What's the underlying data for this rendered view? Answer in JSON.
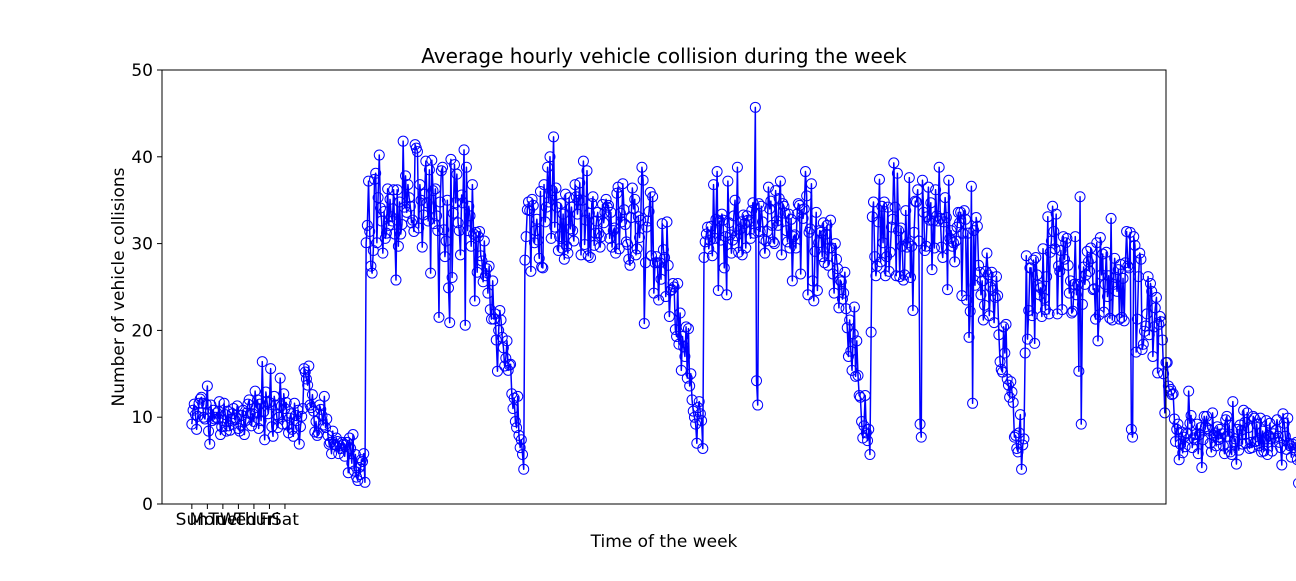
{
  "chart_data": {
    "type": "line",
    "title": "Average hourly vehicle collision during the week",
    "xlabel": "Time of the week",
    "ylabel": "Number of vehicle collisions",
    "ylim": [
      0,
      50
    ],
    "yticks": [
      0,
      10,
      20,
      30,
      40,
      50
    ],
    "xlim": [
      -25,
      816
    ],
    "x_ticks": [
      {
        "x": 0,
        "label": "Sun"
      },
      {
        "x": 13,
        "label": "Mon"
      },
      {
        "x": 26,
        "label": "Tue"
      },
      {
        "x": 39,
        "label": "Wed"
      },
      {
        "x": 52,
        "label": "Thur"
      },
      {
        "x": 65,
        "label": "Fri"
      },
      {
        "x": 78,
        "label": "Sat"
      }
    ],
    "grid": false,
    "legend": "none",
    "colors": {
      "series": "#0000ff",
      "axes": "#000000",
      "background": "#ffffff"
    },
    "marker": "open-circle",
    "x_start": 0,
    "x_step": 1,
    "series": [
      {
        "values": [
          9.2,
          10.8,
          11.5,
          10.3,
          8.6,
          10.1,
          11.6,
          12.1,
          12.3,
          11.6,
          10.0,
          9.8,
          11.5,
          13.6,
          8.4,
          6.9,
          11.4,
          9.6,
          10.8,
          9.8,
          10.0,
          10.5,
          9.8,
          11.8,
          8.0,
          8.9,
          9.6,
          11.6,
          10.3,
          8.4,
          10.7,
          9.0,
          8.5,
          9.8,
          10.4,
          11.0,
          9.7,
          9.9,
          11.3,
          8.7,
          8.4,
          9.1,
          10.2,
          10.8,
          8.0,
          9.6,
          10.5,
          11.5,
          12.0,
          10.4,
          9.0,
          10.4,
          9.5,
          13.0,
          11.1,
          12.0,
          8.7,
          11.5,
          9.6,
          16.4,
          10.6,
          7.4,
          12.9,
          11.8,
          10.4,
          11.7,
          15.6,
          8.9,
          7.8,
          12.4,
          11.4,
          10.3,
          8.8,
          10.0,
          14.5,
          11.3,
          9.2,
          12.7,
          11.0,
          11.7,
          9.1,
          8.2,
          9.9,
          10.4,
          8.6,
          7.8,
          11.6,
          10.2,
          9.6,
          10.8,
          6.9,
          8.9,
          10.1,
          11.0,
          15.6,
          15.2,
          14.4,
          13.7,
          15.9,
          11.4,
          11.1,
          12.6,
          10.7,
          8.3,
          9.5,
          7.9,
          8.2,
          11.4,
          10.9,
          10.2,
          9.1,
          12.4,
          8.8,
          9.8,
          7.9,
          6.9,
          7.1,
          5.8,
          8.4,
          6.9,
          6.8,
          7.6,
          7.2,
          5.8,
          6.7,
          6.4,
          7.1,
          6.9,
          5.5,
          6.8,
          7.1,
          3.6,
          7.6,
          6.4,
          4.7,
          8.0,
          3.8,
          5.7,
          3.1,
          2.7,
          4.2,
          3.4,
          5.1,
          4.9,
          5.8,
          2.5,
          30.1,
          32.1,
          37.2,
          31.4,
          27.4,
          26.6,
          29.2,
          37.4,
          38.1,
          30.1,
          35.3,
          40.2,
          34.1,
          32.6,
          28.9,
          33.7,
          30.6,
          31.2,
          36.3,
          32.1,
          35.1,
          33.1,
          32.6,
          36.2,
          31.1,
          25.8,
          36.2,
          29.7,
          34.8,
          31.1,
          32.2,
          41.8,
          34.2,
          37.8,
          33.6,
          36.8,
          35.3,
          34.3,
          32.4,
          32.7,
          31.4,
          41.4,
          41.0,
          40.6,
          31.8,
          36.8,
          35.0,
          29.6,
          33.3,
          35.7,
          39.5,
          34.7,
          32.6,
          38.5,
          26.6,
          39.6,
          36.1,
          32.3,
          36.3,
          33.2,
          31.5,
          21.5,
          34.8,
          38.4,
          38.8,
          31.6,
          28.5,
          30.3,
          35.0,
          24.9,
          20.9,
          39.7,
          26.1,
          33.5,
          39.1,
          34.7,
          38.0,
          32.4,
          31.5,
          28.7,
          35.6,
          34.7,
          40.8,
          20.6,
          38.8,
          31.5,
          34.3,
          33.2,
          29.7,
          36.8,
          31.1,
          23.4,
          31.3,
          26.7,
          30.8,
          31.4,
          28.6,
          28.0,
          25.6,
          30.3,
          26.3,
          27.1,
          24.3,
          27.4,
          22.4,
          21.3,
          25.7,
          21.3,
          21.9,
          18.9,
          15.3,
          20.0,
          22.3,
          21.2,
          19.2,
          18.0,
          15.9,
          16.8,
          18.8,
          15.4,
          16.0,
          16.1,
          12.7,
          11.0,
          12.2,
          9.5,
          8.8,
          12.4,
          7.9,
          6.5,
          7.4,
          5.7,
          4.0,
          28.1,
          30.8,
          33.9,
          34.8,
          33.8,
          26.8,
          35.1,
          34.4,
          30.1,
          31.5,
          32.8,
          30.4,
          28.3,
          36.0,
          27.3,
          27.2,
          36.8,
          32.5,
          34.2,
          38.8,
          34.8,
          40.0,
          30.6,
          36.1,
          42.3,
          31.9,
          36.4,
          34.2,
          29.2,
          30.8,
          34.6,
          29.5,
          33.4,
          28.2,
          35.7,
          29.7,
          28.9,
          35.3,
          31.7,
          34.2,
          31.5,
          30.3,
          36.8,
          35.4,
          33.4,
          35.0,
          37.0,
          28.7,
          35.0,
          39.5,
          29.9,
          32.7,
          38.4,
          28.6,
          33.5,
          28.4,
          34.6,
          35.4,
          29.8,
          31.2,
          32.6,
          33.6,
          31.2,
          29.6,
          30.8,
          34.5,
          32.4,
          33.6,
          35.1,
          34.2,
          34.4,
          30.6,
          33.6,
          29.6,
          31.5,
          31.8,
          28.9,
          35.8,
          36.5,
          29.4,
          33.5,
          32.5,
          36.9,
          33.9,
          32.2,
          30.2,
          29.9,
          28.2,
          27.5,
          33.0,
          36.4,
          34.0,
          35.1,
          28.7,
          29.4,
          33.1,
          30.7,
          32.7,
          38.8,
          37.3,
          20.8,
          27.8,
          31.9,
          32.6,
          33.7,
          35.9,
          28.6,
          35.4,
          24.3,
          27.8,
          28.5,
          27.8,
          23.5,
          27.8,
          25.9,
          32.3,
          29.3,
          28.4,
          23.9,
          32.5,
          27.5,
          21.6,
          24.6,
          24.7,
          25.4,
          25.0,
          20.1,
          19.3,
          25.4,
          18.4,
          22.0,
          15.4,
          19.3,
          18.1,
          17.0,
          20.4,
          14.5,
          20.2,
          13.6,
          15.0,
          12.0,
          10.7,
          10.0,
          9.2,
          7.0,
          11.1,
          11.8,
          10.4,
          9.6,
          6.4,
          28.4,
          30.2,
          31.1,
          31.9,
          29.4,
          30.4,
          32.0,
          28.6,
          36.8,
          30.6,
          32.8,
          38.3,
          24.6,
          32.6,
          30.4,
          33.4,
          32.7,
          27.2,
          30.8,
          24.1,
          37.2,
          32.4,
          31.0,
          28.9,
          30.4,
          33.2,
          35.0,
          30.9,
          38.8,
          29.0,
          31.6,
          32.5,
          28.7,
          33.3,
          32.3,
          29.5,
          33.2,
          32.7,
          32.5,
          30.6,
          33.8,
          34.7,
          31.2,
          45.7,
          14.2,
          11.4,
          34.6,
          31.4,
          34.3,
          32.5,
          30.5,
          28.9,
          30.3,
          31.4,
          36.5,
          34.0,
          34.9,
          32.1,
          30.2,
          30.0,
          36.1,
          32.6,
          32.1,
          35.2,
          37.2,
          28.7,
          34.6,
          34.3,
          33.5,
          31.5,
          30.2,
          33.4,
          29.5,
          32.8,
          25.7,
          30.8,
          31.0,
          29.5,
          33.4,
          34.6,
          34.4,
          26.5,
          33.9,
          32.9,
          34.0,
          38.3,
          35.5,
          24.1,
          31.3,
          31.7,
          36.9,
          25.7,
          23.4,
          29.1,
          33.6,
          24.6,
          30.1,
          31.5,
          31.3,
          28.5,
          32.4,
          27.8,
          31.1,
          32.1,
          27.5,
          29.5,
          32.7,
          29.5,
          26.5,
          24.3,
          30.0,
          28.2,
          27.1,
          22.6,
          25.8,
          25.6,
          23.6,
          24.3,
          26.7,
          22.5,
          20.3,
          17.0,
          21.2,
          17.6,
          15.4,
          19.6,
          22.7,
          14.7,
          18.8,
          14.8,
          12.5,
          12.3,
          9.5,
          7.6,
          9.0,
          12.5,
          8.2,
          7.3,
          8.6,
          5.7,
          19.8,
          33.1,
          34.8,
          28.5,
          26.3,
          27.4,
          32.5,
          37.4,
          27.9,
          34.3,
          30.1,
          34.8,
          26.3,
          28.5,
          34.2,
          26.8,
          29.0,
          31.9,
          32.8,
          39.3,
          34.2,
          26.3,
          38.1,
          31.5,
          26.2,
          31.8,
          29.7,
          25.8,
          26.4,
          33.8,
          29.6,
          30.1,
          37.6,
          26.1,
          29.7,
          22.3,
          31.3,
          34.9,
          34.8,
          36.2,
          30.3,
          9.2,
          7.7,
          37.3,
          33.6,
          29.2,
          29.7,
          33.1,
          36.5,
          32.7,
          34.7,
          27.0,
          32.6,
          29.5,
          36.2,
          33.2,
          32.6,
          38.8,
          32.9,
          29.6,
          28.4,
          32.5,
          35.3,
          33.0,
          24.7,
          37.3,
          30.6,
          31.5,
          29.7,
          30.1,
          27.9,
          30.3,
          31.9,
          33.6,
          32.4,
          33.6,
          24.0,
          31.2,
          33.8,
          32.8,
          23.5,
          31.2,
          19.2,
          22.2,
          36.6,
          11.6,
          31.5,
          25.2,
          33.0,
          32.0,
          27.5,
          26.7,
          24.1,
          25.7,
          21.2,
          22.9,
          26.8,
          28.9,
          26.4,
          21.7,
          25.0,
          26.7,
          24.6,
          20.9,
          23.8,
          26.2,
          24.0,
          19.5,
          16.4,
          15.5,
          15.2,
          20.4,
          17.4,
          20.7,
          14.4,
          13.7,
          12.3,
          14.1,
          12.9,
          11.7,
          7.7,
          7.9,
          6.4,
          6.0,
          8.2,
          10.3,
          4.0,
          6.8,
          7.5,
          17.4,
          28.6,
          19.0,
          22.3,
          27.2,
          27.2,
          21.7,
          28.1,
          18.5,
          28.4,
          26.4,
          25.2,
          24.1,
          24.9,
          21.6,
          29.4,
          23.7,
          22.4,
          26.2,
          33.1,
          21.9,
          29.0,
          30.3,
          34.3,
          31.4,
          29.4,
          33.4,
          21.9,
          27.4,
          26.8,
          29.2,
          22.4,
          30.8,
          28.2,
          30.1,
          30.6,
          27.5,
          24.3,
          25.7,
          22.0,
          22.2,
          25.3,
          30.8,
          24.1,
          25.3,
          15.3,
          35.4,
          9.2,
          23.0,
          27.3,
          25.3,
          26.4,
          29.1,
          27.9,
          26.8,
          29.5,
          28.3,
          24.7,
          24.8,
          21.3,
          30.1,
          18.8,
          21.8,
          30.7,
          26.4,
          28.8,
          22.1,
          25.3,
          29.0,
          23.9,
          26.3,
          21.4,
          32.9,
          21.2,
          25.3,
          28.3,
          26.1,
          24.5,
          27.0,
          21.3,
          27.6,
          21.5,
          26.0,
          21.1,
          27.8,
          31.4,
          27.4,
          27.2,
          31.3,
          8.6,
          7.7,
          30.8,
          29.8,
          17.5,
          21.3,
          26.2,
          28.9,
          28.2,
          17.8,
          18.4,
          19.9,
          20.5,
          21.9,
          26.2,
          19.5,
          25.4,
          24.5,
          17.0,
          20.4,
          22.6,
          23.8,
          15.1,
          20.7,
          21.6,
          21.0,
          18.9,
          15.0,
          10.5,
          16.3,
          16.3,
          13.6,
          13.0,
          13.2,
          12.6,
          12.7,
          9.8,
          7.2,
          8.6,
          9.2,
          5.1,
          6.9,
          8.3,
          5.9,
          7.7,
          6.6,
          8.2,
          8.1,
          13.0,
          9.3,
          10.2,
          6.5,
          7.6,
          7.4,
          8.0,
          9.2,
          5.8,
          8.0,
          8.8,
          4.2,
          7.4,
          10.1,
          8.9,
          10.1,
          8.7,
          8.5,
          7.0,
          6.0,
          10.5,
          7.9,
          8.2,
          6.7,
          8.9,
          7.4,
          8.6,
          7.6,
          8.1,
          6.7,
          5.8,
          9.7,
          10.1,
          7.8,
          9.1,
          6.0,
          5.7,
          11.8,
          7.2,
          7.5,
          4.6,
          8.6,
          6.2,
          9.1,
          8.5,
          6.9,
          10.8,
          9.4,
          7.0,
          10.5,
          8.8,
          6.4,
          7.1,
          6.5,
          10.1,
          9.9,
          7.2,
          9.2,
          7.3,
          6.7,
          9.9,
          6.0,
          8.4,
          6.1,
          7.5,
          9.6,
          5.7,
          7.9,
          9.3,
          7.5,
          6.1,
          8.1,
          7.6,
          8.5,
          9.7,
          7.8,
          7.1,
          6.5,
          4.5,
          10.4,
          9.3,
          7.8,
          6.3,
          9.9,
          7.0,
          6.7,
          5.4,
          6.9,
          6.5,
          6.2,
          7.1,
          5.1,
          2.4,
          5.8,
          4.9,
          3.9,
          5.4,
          4.5,
          3.2,
          3.0,
          4.6,
          4.3,
          2.4,
          3.4,
          4.0,
          2.3
        ]
      }
    ]
  }
}
